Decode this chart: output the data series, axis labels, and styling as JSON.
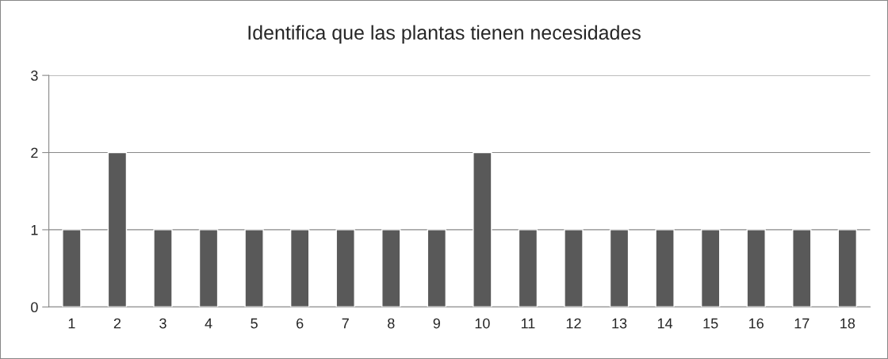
{
  "chart_data": {
    "type": "bar",
    "title": "Identifica que las plantas tienen necesidades",
    "categories": [
      "1",
      "2",
      "3",
      "4",
      "5",
      "6",
      "7",
      "8",
      "9",
      "10",
      "11",
      "12",
      "13",
      "14",
      "15",
      "16",
      "17",
      "18"
    ],
    "values": [
      1,
      2,
      1,
      1,
      1,
      1,
      1,
      1,
      1,
      2,
      1,
      1,
      1,
      1,
      1,
      1,
      1,
      1
    ],
    "color": "#595959",
    "ylim": [
      0,
      3
    ],
    "yticks": [
      0,
      1,
      2,
      3
    ],
    "grid": "y"
  }
}
